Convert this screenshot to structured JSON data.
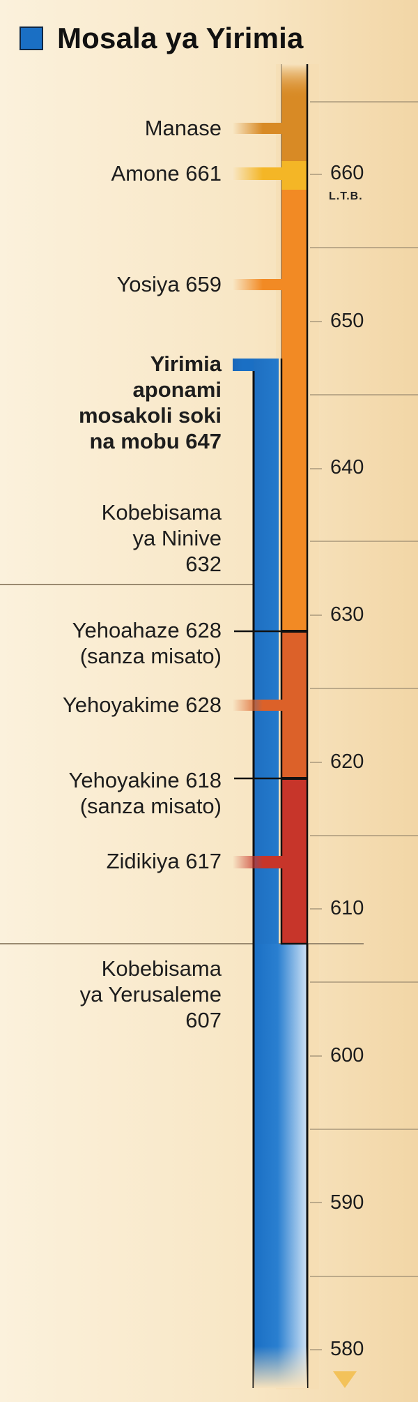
{
  "title": "Mosala ya Yirimia",
  "colors": {
    "jeremiah": "#1a6fc4",
    "manase": "#d88a25",
    "amone": "#f4b626",
    "yosiya": "#f28a24",
    "yehoyakime": "#dc6129",
    "zidikiya": "#c7352a"
  },
  "era_label": "L.T.B.",
  "axis_years": [
    "660",
    "650",
    "640",
    "630",
    "620",
    "610",
    "600",
    "590",
    "580"
  ],
  "labels": {
    "manase": "Manase",
    "amone": "Amone 661",
    "yosiya": "Yosiya 659",
    "jeremiah_start": "Yirimia\naponami\nmosakoli soki\nna mobu 647",
    "nineveh": "Kobebisama\nya Ninive\n632",
    "yehoahaz": "Yehoahaze 628\n(sanza misato)",
    "yehoyakim": "Yehoyakime 628",
    "yehoyakin": "Yehoyakine 618\n(sanza misato)",
    "zedekiah": "Zidikiya 617",
    "jerusalem": "Kobebisama\nya Yerusaleme\n607"
  },
  "chart_data": {
    "type": "timeline",
    "title": "Mosala ya Yirimia",
    "axis": {
      "unit": "L.T.B.",
      "range": [
        663,
        578
      ],
      "ticks": [
        660,
        650,
        640,
        630,
        620,
        610,
        600,
        590,
        580
      ]
    },
    "reigns": [
      {
        "name": "Manase",
        "start": 663,
        "end": 661
      },
      {
        "name": "Amone 661",
        "start": 661,
        "end": 659
      },
      {
        "name": "Yosiya 659",
        "start": 659,
        "end": 628
      },
      {
        "name": "Yehoahaze 628",
        "start": 628,
        "end": 628
      },
      {
        "name": "Yehoyakime 628",
        "start": 628,
        "end": 618
      },
      {
        "name": "Yehoyakine 618",
        "start": 618,
        "end": 618
      },
      {
        "name": "Zidikiya 617",
        "start": 617,
        "end": 607
      }
    ],
    "events": [
      {
        "name": "Kobebisama ya Ninive",
        "year": 632
      },
      {
        "name": "Kobebisama ya Yerusaleme",
        "year": 607
      }
    ],
    "jeremiah": {
      "start": 647,
      "end": 580
    }
  }
}
